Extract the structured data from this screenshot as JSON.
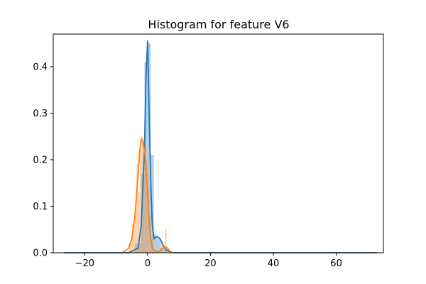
{
  "chart_data": {
    "type": "histogram",
    "title": "Histogram for feature V6",
    "xlabel": "",
    "ylabel": "",
    "xlim": [
      -30,
      75
    ],
    "ylim": [
      0,
      0.47
    ],
    "x_ticks": [
      -20,
      0,
      20,
      40,
      60
    ],
    "x_tick_labels": [
      "−20",
      "0",
      "20",
      "40",
      "60"
    ],
    "y_ticks": [
      0.0,
      0.1,
      0.2,
      0.3,
      0.4
    ],
    "y_tick_labels": [
      "0.0",
      "0.1",
      "0.2",
      "0.3",
      "0.4"
    ],
    "grid": false,
    "legend": "none",
    "series": [
      {
        "color": "#1f77b4",
        "bar_alpha": 0.35,
        "bins": [
          {
            "x0": -4.0,
            "x1": -2.0,
            "h": 0.02
          },
          {
            "x0": -2.0,
            "x1": -1.0,
            "h": 0.17
          },
          {
            "x0": -1.0,
            "x1": 0.0,
            "h": 0.41
          },
          {
            "x0": 0.0,
            "x1": 1.0,
            "h": 0.45
          },
          {
            "x0": 1.0,
            "x1": 2.0,
            "h": 0.21
          },
          {
            "x0": 2.0,
            "x1": 3.0,
            "h": 0.04
          },
          {
            "x0": 3.0,
            "x1": 4.0,
            "h": 0.03
          },
          {
            "x0": 4.0,
            "x1": 6.0,
            "h": 0.01
          }
        ],
        "kde_x": [
          -26.5,
          -20,
          -10,
          -6,
          -3,
          -2,
          -1,
          -0.5,
          0,
          0.5,
          1,
          1.5,
          2,
          3,
          4,
          5,
          6,
          8,
          12,
          20,
          40,
          60,
          73
        ],
        "kde_y": [
          0,
          0,
          0,
          0.0,
          0.01,
          0.06,
          0.22,
          0.38,
          0.455,
          0.3,
          0.15,
          0.06,
          0.03,
          0.035,
          0.03,
          0.015,
          0.005,
          0,
          0,
          0,
          0,
          0,
          0
        ]
      },
      {
        "color": "#ff7f0e",
        "bar_alpha": 0.35,
        "bins": [
          {
            "x0": -6.0,
            "x1": -5.0,
            "h": 0.02
          },
          {
            "x0": -5.0,
            "x1": -4.0,
            "h": 0.06
          },
          {
            "x0": -4.0,
            "x1": -3.5,
            "h": 0.09
          },
          {
            "x0": -3.5,
            "x1": -3.0,
            "h": 0.19
          },
          {
            "x0": -3.0,
            "x1": -2.5,
            "h": 0.13
          },
          {
            "x0": -2.5,
            "x1": -2.0,
            "h": 0.22
          },
          {
            "x0": -2.0,
            "x1": -1.5,
            "h": 0.25
          },
          {
            "x0": -1.5,
            "x1": -1.0,
            "h": 0.24
          },
          {
            "x0": -1.0,
            "x1": -0.5,
            "h": 0.23
          },
          {
            "x0": -0.5,
            "x1": 0.0,
            "h": 0.2
          },
          {
            "x0": 0.0,
            "x1": 0.5,
            "h": 0.14
          },
          {
            "x0": 0.5,
            "x1": 1.0,
            "h": 0.08
          },
          {
            "x0": 1.0,
            "x1": 2.0,
            "h": 0.03
          },
          {
            "x0": 4.0,
            "x1": 5.0,
            "h": 0.02
          },
          {
            "x0": 5.5,
            "x1": 6.0,
            "h": 0.05
          },
          {
            "x0": 6.0,
            "x1": 7.0,
            "h": 0.01
          }
        ],
        "kde_x": [
          -8,
          -6,
          -5,
          -4,
          -3,
          -2.5,
          -2,
          -1.5,
          -1,
          -0.5,
          0,
          0.5,
          1,
          1.5,
          2,
          3,
          4,
          5,
          6,
          7,
          8
        ],
        "kde_y": [
          0,
          0.01,
          0.03,
          0.08,
          0.17,
          0.22,
          0.245,
          0.24,
          0.22,
          0.19,
          0.13,
          0.07,
          0.03,
          0.01,
          0.005,
          0.003,
          0.004,
          0.01,
          0.012,
          0.004,
          0
        ]
      }
    ]
  }
}
